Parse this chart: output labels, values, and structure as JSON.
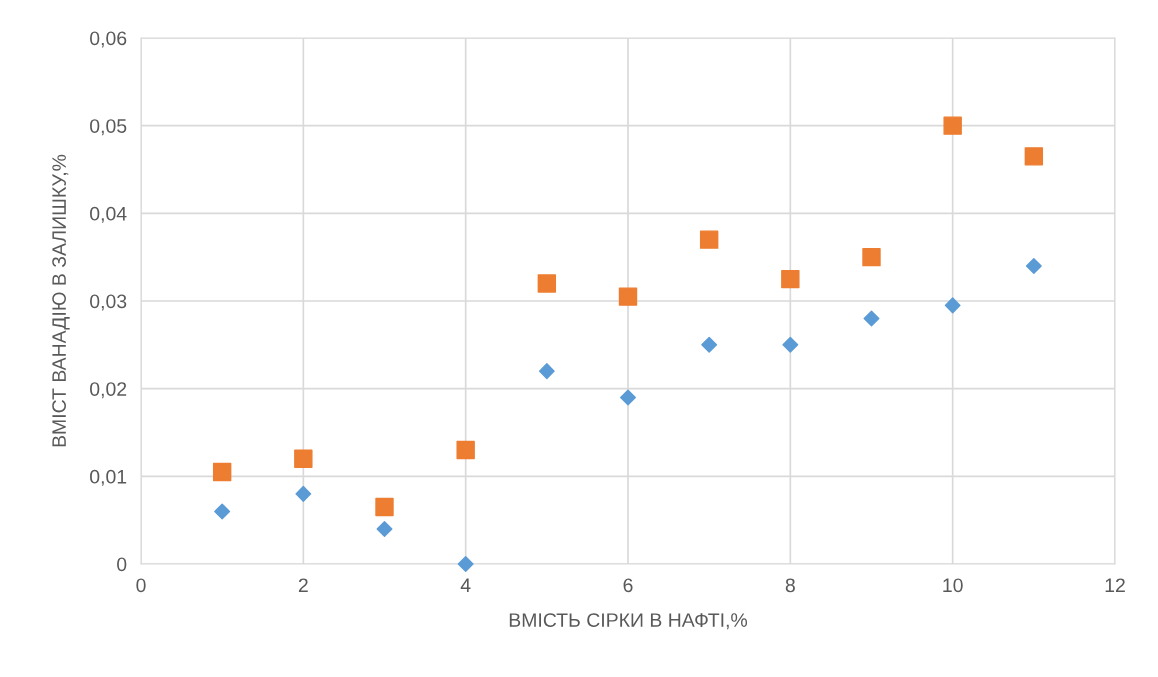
{
  "chart_data": {
    "type": "scatter",
    "xlabel": "ВМІСТЬ СІРКИ В НАФТІ,%",
    "ylabel": "ВМІСТ ВАНАДІЮ В ЗАЛИШКУ,%",
    "x": [
      1,
      2,
      3,
      4,
      5,
      6,
      7,
      8,
      9,
      10,
      11
    ],
    "series": [
      {
        "color": "#5b9bd5",
        "marker": "diamond",
        "values": [
          0.006,
          0.008,
          0.004,
          0,
          0.022,
          0.019,
          0.025,
          0.025,
          0.028,
          0.0295,
          0.034
        ]
      },
      {
        "color": "#ed7d31",
        "marker": "square",
        "values": [
          0.0105,
          0.012,
          0.0065,
          0.013,
          0.032,
          0.0305,
          0.037,
          0.0325,
          0.035,
          0.05,
          0.0465
        ]
      }
    ],
    "xlim": [
      0,
      12
    ],
    "xticks": [
      0,
      2,
      4,
      6,
      8,
      10,
      12
    ],
    "ylim": [
      0,
      0.06
    ],
    "yticks": [
      {
        "value": 0,
        "label": "0"
      },
      {
        "value": 0.01,
        "label": "0,01"
      },
      {
        "value": 0.02,
        "label": "0,02"
      },
      {
        "value": 0.03,
        "label": "0,03"
      },
      {
        "value": 0.04,
        "label": "0,04"
      },
      {
        "value": 0.05,
        "label": "0,05"
      },
      {
        "value": 0.06,
        "label": "0,06"
      }
    ],
    "grid": true
  }
}
